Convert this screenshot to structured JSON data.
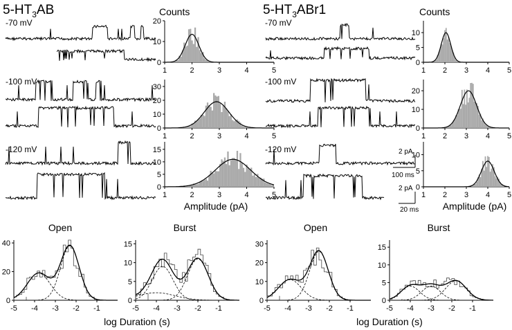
{
  "panels": [
    {
      "title_main": "5-HT",
      "title_sub": "3",
      "title_rest": "AB"
    },
    {
      "title_main": "5-HT",
      "title_sub": "3",
      "title_rest": "ABr1"
    }
  ],
  "hist_title": "Counts",
  "voltages": [
    "-70 mV",
    "-100 mV",
    "-120 mV"
  ],
  "scale_bars": {
    "slow": {
      "amp": "2 pA",
      "time": "100 ms"
    },
    "fast": {
      "amp": "2 pA",
      "time": "20 ms"
    }
  },
  "amplitude_axis": {
    "label": "Amplitude (pA)",
    "ticks": [
      1,
      2,
      3,
      4,
      5
    ]
  },
  "duration_axis": {
    "label": "log Duration (s)",
    "ticks": [
      -5,
      -4,
      -3,
      -2,
      -1
    ]
  },
  "chart_data": [
    {
      "type": "bar",
      "panel": "5-HT3AB",
      "voltage": "-70 mV",
      "xlabel": "",
      "ylabel": "Counts",
      "xlim": [
        1,
        5
      ],
      "ylim": [
        0,
        20
      ],
      "yticks": [
        0,
        10,
        20
      ],
      "fit": {
        "mean": 2.0,
        "sd": 0.25,
        "peak": 13.5
      }
    },
    {
      "type": "bar",
      "panel": "5-HT3AB",
      "voltage": "-100 mV",
      "xlabel": "",
      "ylabel": "Counts",
      "xlim": [
        1,
        5
      ],
      "ylim": [
        0,
        35
      ],
      "yticks": [
        0,
        10,
        20,
        30
      ],
      "fit": {
        "mean": 2.9,
        "sd": 0.45,
        "peak": 19
      }
    },
    {
      "type": "bar",
      "panel": "5-HT3AB",
      "voltage": "-120 mV",
      "xlabel": "Amplitude (pA)",
      "ylabel": "Counts",
      "xlim": [
        1,
        5
      ],
      "ylim": [
        0,
        18
      ],
      "yticks": [
        0,
        5,
        10,
        15
      ],
      "fit": {
        "mean": 3.5,
        "sd": 0.65,
        "peak": 11
      }
    },
    {
      "type": "bar",
      "panel": "5-HT3ABr1",
      "voltage": "-70 mV",
      "xlabel": "",
      "ylabel": "Counts",
      "xlim": [
        1,
        5
      ],
      "ylim": [
        0,
        14
      ],
      "yticks": [
        0,
        5,
        10
      ],
      "fit": {
        "mean": 2.05,
        "sd": 0.22,
        "peak": 10
      }
    },
    {
      "type": "bar",
      "panel": "5-HT3ABr1",
      "voltage": "-100 mV",
      "xlabel": "",
      "ylabel": "Counts",
      "xlim": [
        1,
        5
      ],
      "ylim": [
        0,
        26
      ],
      "yticks": [
        0,
        10,
        20
      ],
      "fit": {
        "mean": 3.1,
        "sd": 0.38,
        "peak": 20
      }
    },
    {
      "type": "bar",
      "panel": "5-HT3ABr1",
      "voltage": "-120 mV",
      "xlabel": "Amplitude (pA)",
      "ylabel": "Counts",
      "xlim": [
        1,
        5
      ],
      "ylim": [
        0,
        14
      ],
      "yticks": [
        0,
        5,
        10
      ],
      "fit": {
        "mean": 4.0,
        "sd": 0.3,
        "peak": 8
      }
    },
    {
      "type": "line",
      "panel": "5-HT3AB",
      "title": "Open",
      "xlabel": "",
      "ylabel": "",
      "xlim": [
        -5,
        0
      ],
      "ylim": [
        0,
        42
      ],
      "yticks": [
        0,
        20,
        40
      ],
      "components": [
        {
          "mean": -3.8,
          "sd": 0.55,
          "peak": 19
        },
        {
          "mean": -2.3,
          "sd": 0.45,
          "peak": 38
        }
      ]
    },
    {
      "type": "line",
      "panel": "5-HT3AB",
      "title": "Burst",
      "xlabel": "log Duration (s)",
      "ylabel": "",
      "xlim": [
        -5,
        0
      ],
      "ylim": [
        0,
        16
      ],
      "yticks": [
        0,
        5,
        10,
        15
      ],
      "components": [
        {
          "mean": -3.7,
          "sd": 0.5,
          "peak": 9
        },
        {
          "mean": -2.0,
          "sd": 0.5,
          "peak": 11
        },
        {
          "mean": -4.0,
          "sd": 0.9,
          "peak": 2
        }
      ]
    },
    {
      "type": "line",
      "panel": "5-HT3ABr1",
      "title": "Open",
      "xlabel": "",
      "ylabel": "",
      "xlim": [
        -5,
        0
      ],
      "ylim": [
        0,
        32
      ],
      "yticks": [
        0,
        10,
        20,
        30
      ],
      "components": [
        {
          "mean": -3.9,
          "sd": 0.55,
          "peak": 11
        },
        {
          "mean": -2.5,
          "sd": 0.45,
          "peak": 26
        }
      ]
    },
    {
      "type": "line",
      "panel": "5-HT3ABr1",
      "title": "Burst",
      "xlabel": "log Duration (s)",
      "ylabel": "",
      "xlim": [
        -5,
        0
      ],
      "ylim": [
        0,
        17
      ],
      "yticks": [
        0,
        5,
        10,
        15
      ],
      "components": [
        {
          "mean": -4.0,
          "sd": 0.45,
          "peak": 4
        },
        {
          "mean": -3.0,
          "sd": 0.45,
          "peak": 4
        },
        {
          "mean": -1.8,
          "sd": 0.5,
          "peak": 5.5
        }
      ]
    }
  ]
}
